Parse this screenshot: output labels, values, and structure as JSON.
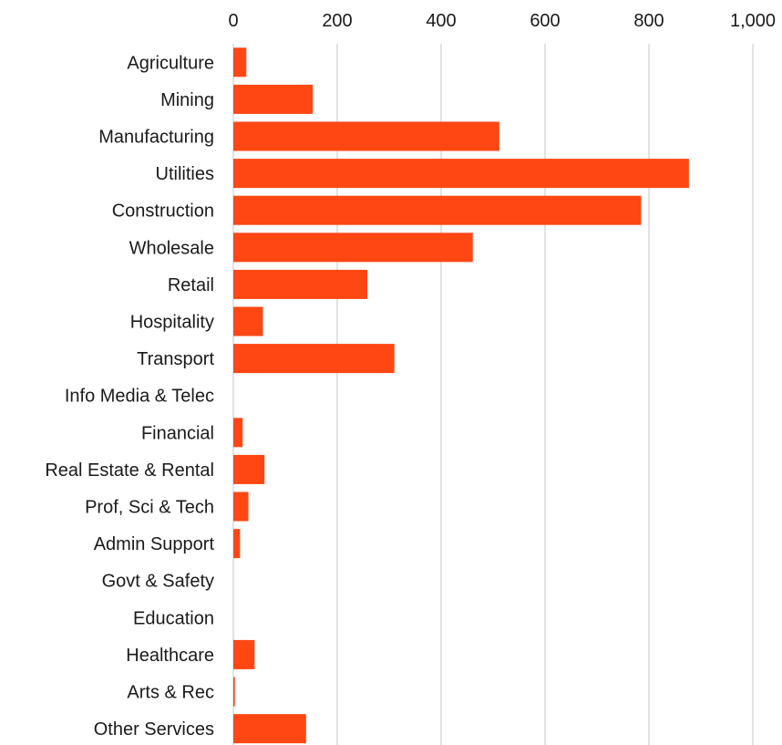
{
  "chart_data": {
    "type": "bar",
    "orientation": "horizontal",
    "categories": [
      "Agriculture",
      "Mining",
      "Manufacturing",
      "Utilities",
      "Construction",
      "Wholesale",
      "Retail",
      "Hospitality",
      "Transport",
      "Info Media & Telec",
      "Financial",
      "Real Estate & Rental",
      "Prof, Sci & Tech",
      "Admin Support",
      "Govt & Safety",
      "Education",
      "Healthcare",
      "Arts & Rec",
      "Other Services"
    ],
    "values": [
      25,
      153,
      512,
      877,
      785,
      461,
      258,
      57,
      310,
      0,
      18,
      60,
      29,
      13,
      0,
      0,
      41,
      3,
      140
    ],
    "xlim": [
      0,
      1000
    ],
    "xticks": [
      0,
      200,
      400,
      600,
      800,
      1000
    ],
    "xtick_labels": [
      "0",
      "200",
      "400",
      "600",
      "800",
      "1,000"
    ],
    "x_axis_position": "top",
    "grid": true,
    "legend": "none",
    "colors": {
      "bar": "#ff4713",
      "grid": "#d9d9d9",
      "text": "#1a1a1a"
    }
  }
}
